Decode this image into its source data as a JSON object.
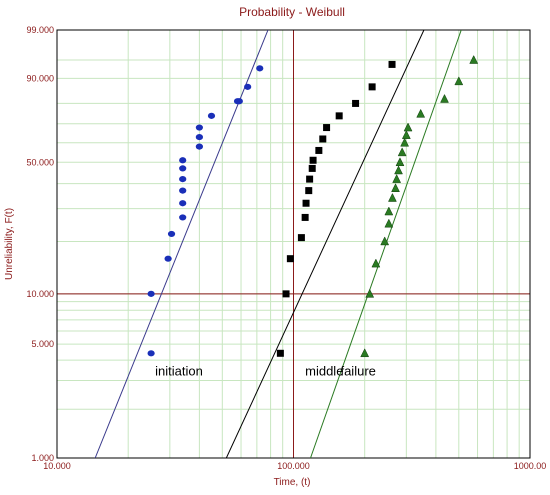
{
  "chart_data": {
    "type": "scatter",
    "title": "Probability - Weibull",
    "xlabel": "Time, (t)",
    "ylabel": "Unreliability, F(t)",
    "x_scale": "log",
    "y_scale": "weibull",
    "xlim": [
      10,
      1000
    ],
    "ylim": [
      1,
      99
    ],
    "x_ticks": [
      10,
      100,
      1000
    ],
    "x_tick_labels": [
      "10.000",
      "100.000",
      "1000.00"
    ],
    "y_ticks": [
      1,
      5,
      10,
      50,
      90,
      99
    ],
    "y_tick_labels": [
      "1.000",
      "5.000",
      "10.000",
      "50.000",
      "90.000",
      "99.000"
    ],
    "grid": true,
    "colors": {
      "grid": "#c8e6c0",
      "major_ref": "#8b1a1a",
      "frame": "#000000",
      "text": "#8b1a1a"
    },
    "series": [
      {
        "label": "initiation",
        "marker": "circle",
        "color": "#1a2fb8",
        "line_color": "#3a3a8c",
        "points": [
          [
            25,
            4.4
          ],
          [
            25,
            10
          ],
          [
            29.5,
            16
          ],
          [
            30.5,
            22
          ],
          [
            34,
            27
          ],
          [
            34,
            32
          ],
          [
            34,
            37
          ],
          [
            34,
            42
          ],
          [
            34,
            47
          ],
          [
            34,
            51
          ],
          [
            40,
            58
          ],
          [
            40,
            63
          ],
          [
            40,
            68
          ],
          [
            45,
            74
          ],
          [
            58,
            81
          ],
          [
            59,
            81
          ],
          [
            64,
            87
          ],
          [
            72,
            93
          ]
        ],
        "fit": [
          [
            14.5,
            1
          ],
          [
            78,
            99
          ]
        ]
      },
      {
        "label": "middle",
        "marker": "square",
        "color": "#000000",
        "line_color": "#000000",
        "points": [
          [
            88,
            4.4
          ],
          [
            93,
            10
          ],
          [
            97,
            16
          ],
          [
            108,
            21
          ],
          [
            112,
            27
          ],
          [
            113,
            32
          ],
          [
            116,
            37
          ],
          [
            117,
            42
          ],
          [
            120,
            47
          ],
          [
            121,
            51
          ],
          [
            128,
            56
          ],
          [
            133,
            62
          ],
          [
            138,
            68
          ],
          [
            156,
            74
          ],
          [
            183,
            80
          ],
          [
            215,
            87
          ],
          [
            261,
            94
          ]
        ],
        "fit": [
          [
            52,
            1
          ],
          [
            356,
            99
          ]
        ]
      },
      {
        "label": "failure",
        "marker": "triangle",
        "color": "#2a7a22",
        "line_color": "#2a7a22",
        "points": [
          [
            200,
            4.4
          ],
          [
            210,
            10
          ],
          [
            223,
            15
          ],
          [
            243,
            20
          ],
          [
            253,
            25
          ],
          [
            253,
            29
          ],
          [
            262,
            34
          ],
          [
            270,
            38
          ],
          [
            273,
            42
          ],
          [
            278,
            46
          ],
          [
            282,
            50
          ],
          [
            288,
            55
          ],
          [
            295,
            60
          ],
          [
            300,
            64
          ],
          [
            305,
            68
          ],
          [
            345,
            75
          ],
          [
            435,
            82
          ],
          [
            500,
            89
          ],
          [
            578,
            95
          ]
        ],
        "fit": [
          [
            118,
            1
          ],
          [
            512,
            99
          ]
        ]
      }
    ]
  }
}
